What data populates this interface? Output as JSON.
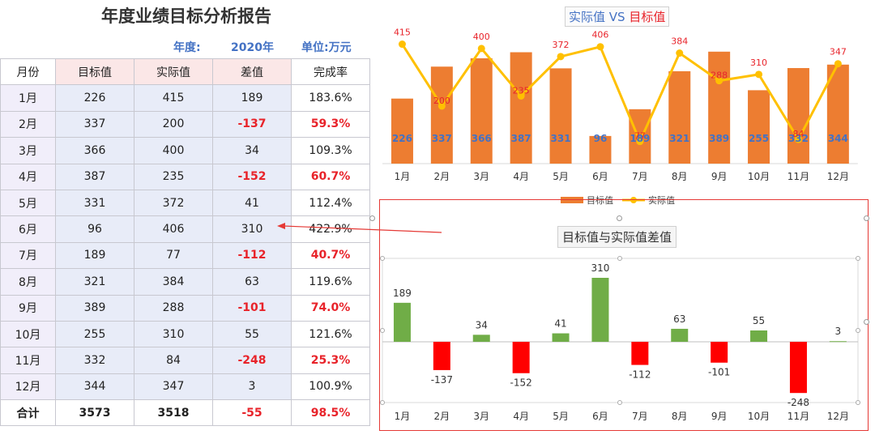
{
  "report": {
    "title": "年度业绩目标分析报告",
    "year_label": "年度:",
    "year_value": "2020年",
    "unit": "单位:万元"
  },
  "table": {
    "headers": [
      "月份",
      "目标值",
      "实际值",
      "差值",
      "完成率"
    ],
    "rows": [
      {
        "month": "1月",
        "target": "226",
        "actual": "415",
        "diff": "189",
        "rate": "183.6%",
        "neg": false
      },
      {
        "month": "2月",
        "target": "337",
        "actual": "200",
        "diff": "-137",
        "rate": "59.3%",
        "neg": true
      },
      {
        "month": "3月",
        "target": "366",
        "actual": "400",
        "diff": "34",
        "rate": "109.3%",
        "neg": false
      },
      {
        "month": "4月",
        "target": "387",
        "actual": "235",
        "diff": "-152",
        "rate": "60.7%",
        "neg": true
      },
      {
        "month": "5月",
        "target": "331",
        "actual": "372",
        "diff": "41",
        "rate": "112.4%",
        "neg": false
      },
      {
        "month": "6月",
        "target": "96",
        "actual": "406",
        "diff": "310",
        "rate": "422.9%",
        "neg": false
      },
      {
        "month": "7月",
        "target": "189",
        "actual": "77",
        "diff": "-112",
        "rate": "40.7%",
        "neg": true
      },
      {
        "month": "8月",
        "target": "321",
        "actual": "384",
        "diff": "63",
        "rate": "119.6%",
        "neg": false
      },
      {
        "month": "9月",
        "target": "389",
        "actual": "288",
        "diff": "-101",
        "rate": "74.0%",
        "neg": true
      },
      {
        "month": "10月",
        "target": "255",
        "actual": "310",
        "diff": "55",
        "rate": "121.6%",
        "neg": false
      },
      {
        "month": "11月",
        "target": "332",
        "actual": "84",
        "diff": "-248",
        "rate": "25.3%",
        "neg": true
      },
      {
        "month": "12月",
        "target": "344",
        "actual": "347",
        "diff": "3",
        "rate": "100.9%",
        "neg": false
      }
    ],
    "total": {
      "month": "合计",
      "target": "3573",
      "actual": "3518",
      "diff": "-55",
      "rate": "98.5%"
    }
  },
  "chart_data": [
    {
      "type": "bar",
      "title_part1": "实际值",
      "title_vs": " VS ",
      "title_part2": "目标值",
      "categories": [
        "1月",
        "2月",
        "3月",
        "4月",
        "5月",
        "6月",
        "7月",
        "8月",
        "9月",
        "10月",
        "11月",
        "12月"
      ],
      "series": [
        {
          "name": "目标值",
          "kind": "bar",
          "color": "#ed7d31",
          "label_color": "#4472c4",
          "values": [
            226,
            337,
            366,
            387,
            331,
            96,
            189,
            321,
            389,
            255,
            332,
            344
          ]
        },
        {
          "name": "实际值",
          "kind": "line",
          "color": "#ffc000",
          "label_color": "#e8232a",
          "values": [
            415,
            200,
            400,
            235,
            372,
            406,
            77,
            384,
            288,
            310,
            84,
            347
          ]
        }
      ],
      "ylim": [
        0,
        470
      ],
      "grid": false,
      "legend": "bottom"
    },
    {
      "type": "bar",
      "title": "目标值与实际值差值",
      "categories": [
        "1月",
        "2月",
        "3月",
        "4月",
        "5月",
        "6月",
        "7月",
        "8月",
        "9月",
        "10月",
        "11月",
        "12月"
      ],
      "values": [
        189,
        -137,
        34,
        -152,
        41,
        310,
        -112,
        63,
        -101,
        55,
        -248,
        3
      ],
      "positive_color": "#70ad47",
      "negative_color": "#ff0000",
      "ylim": [
        -260,
        330
      ],
      "legend": "none"
    }
  ]
}
